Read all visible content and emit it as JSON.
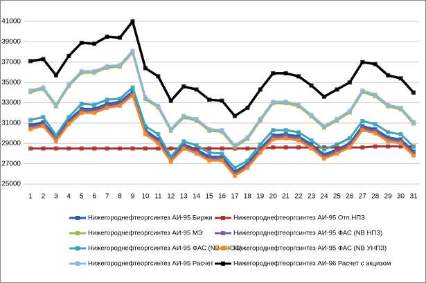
{
  "chart_data": {
    "type": "line",
    "x": [
      1,
      2,
      3,
      4,
      5,
      6,
      7,
      8,
      9,
      10,
      11,
      12,
      13,
      14,
      15,
      16,
      17,
      18,
      19,
      20,
      21,
      22,
      23,
      24,
      25,
      26,
      27,
      28,
      29,
      30,
      31
    ],
    "xlim": [
      1,
      31
    ],
    "ylim": [
      25000,
      41000
    ],
    "yticks": [
      25000,
      27000,
      29000,
      31000,
      33000,
      35000,
      37000,
      39000,
      41000
    ],
    "grid": true,
    "series": [
      {
        "name": "Нижегороднефтеоргсинтез АИ-95 Биржи",
        "color": "#2f5d9e",
        "values": [
          30800,
          31100,
          29600,
          31300,
          32400,
          32400,
          32900,
          33100,
          34100,
          30300,
          29400,
          27600,
          28900,
          28400,
          27700,
          27700,
          26200,
          27000,
          28500,
          29800,
          29900,
          29700,
          28900,
          27900,
          28400,
          29000,
          30700,
          30400,
          29600,
          29400,
          28200
        ]
      },
      {
        "name": "Нижегороднефтеоргсинтез АИ-95 Отп.НПЗ",
        "color": "#a8322f",
        "values": [
          28500,
          28500,
          28500,
          28500,
          28500,
          28500,
          28500,
          28500,
          28500,
          28500,
          28500,
          28500,
          28500,
          28500,
          28500,
          28500,
          28500,
          28500,
          28500,
          28600,
          28600,
          28600,
          28600,
          28600,
          28600,
          28600,
          28600,
          28700,
          28700,
          28700,
          28700
        ]
      },
      {
        "name": "Нижегороднефтеоргсинтез АИ-95 МЭ",
        "color": "#9bbb59",
        "values": [
          34050,
          34350,
          32650,
          34650,
          35950,
          35950,
          36450,
          36550,
          37950,
          33350,
          32550,
          30250,
          31550,
          31250,
          30250,
          30150,
          28650,
          29450,
          31250,
          32950,
          32950,
          32650,
          31650,
          30550,
          31250,
          32050,
          34050,
          33650,
          32650,
          32350,
          30950
        ]
      },
      {
        "name": "Нижегороднефтеоргсинтез АИ-95 ФАС (NB НПЗ)",
        "color": "#7d5fa0",
        "values": [
          30600,
          30900,
          29400,
          31100,
          32200,
          32200,
          32700,
          32900,
          33900,
          30100,
          29200,
          27400,
          28700,
          28200,
          27500,
          27500,
          26000,
          26800,
          28300,
          29600,
          29700,
          29500,
          28700,
          27700,
          28200,
          28800,
          30500,
          30200,
          29400,
          29200,
          28000
        ]
      },
      {
        "name": "Нижегороднефтеоргсинтез АИ-95 ФАС (NB КНОС)",
        "color": "#3fa3b5",
        "values": [
          31300,
          31600,
          29800,
          31600,
          32900,
          32800,
          33300,
          33400,
          34500,
          30700,
          29900,
          27700,
          29200,
          28800,
          28100,
          28000,
          26600,
          27300,
          28900,
          30300,
          30300,
          30100,
          29300,
          28400,
          28900,
          29500,
          31200,
          30900,
          30100,
          29900,
          28700
        ]
      },
      {
        "name": "Нижегороднефтеоргсинтез АИ-95 ФАС (NB УНПЗ)",
        "color": "#f08a2e",
        "values": [
          30400,
          30700,
          29200,
          30900,
          32000,
          32000,
          32500,
          32700,
          33700,
          29900,
          29000,
          27200,
          28500,
          28000,
          27300,
          27300,
          25800,
          26600,
          28100,
          29400,
          29500,
          29300,
          28500,
          27500,
          28000,
          28600,
          30300,
          30000,
          29200,
          29000,
          27800
        ]
      },
      {
        "name": "Нижегороднефтеоргсинтез АИ-95 Расчет",
        "color": "#95b3d7",
        "values": [
          34200,
          34500,
          32800,
          34800,
          36100,
          36100,
          36600,
          36700,
          38100,
          33500,
          32700,
          30400,
          31700,
          31400,
          30400,
          30300,
          28800,
          29600,
          31400,
          33100,
          33100,
          32800,
          31800,
          30700,
          31400,
          32200,
          34200,
          33800,
          32800,
          32500,
          31100
        ]
      },
      {
        "name": "Нижегороднефтеоргсинтез АИ-96 Расчет с акцизом",
        "color": "#000000",
        "values": [
          37100,
          37300,
          35700,
          37600,
          38900,
          38800,
          39500,
          39400,
          41000,
          36400,
          35600,
          33200,
          34600,
          34300,
          33300,
          33200,
          31700,
          32500,
          34300,
          35900,
          35900,
          35600,
          34700,
          33600,
          34300,
          35000,
          37000,
          36800,
          35700,
          35400,
          34000
        ]
      }
    ]
  }
}
